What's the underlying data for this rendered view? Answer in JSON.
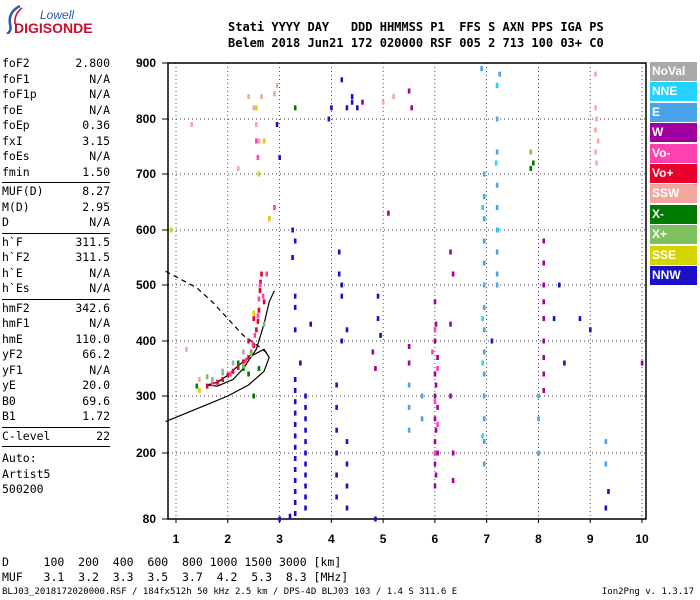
{
  "logo": {
    "top": "Lowell",
    "main": "DIGISONDE"
  },
  "header": {
    "line1": "Stati YYYY DAY   DDD HHMMSS P1  FFS S AXN PPS IGA PS",
    "line2": "Belem 2018 Jun21 172 020000 RSF 005 2 713 100 03+ C0"
  },
  "params": [
    {
      "k": "foF2",
      "v": "2.800"
    },
    {
      "k": "foF1",
      "v": "N/A"
    },
    {
      "k": "foF1p",
      "v": "N/A"
    },
    {
      "k": "foE",
      "v": "N/A"
    },
    {
      "k": "foEp",
      "v": "0.36"
    },
    {
      "k": "fxI",
      "v": "3.15"
    },
    {
      "k": "foEs",
      "v": "N/A"
    },
    {
      "k": "fmin",
      "v": "1.50"
    },
    {
      "k": "MUF(D)",
      "v": "8.27"
    },
    {
      "k": "M(D)",
      "v": "2.95"
    },
    {
      "k": "D",
      "v": "N/A"
    },
    {
      "k": "h`F",
      "v": "311.5"
    },
    {
      "k": "h`F2",
      "v": "311.5"
    },
    {
      "k": "h`E",
      "v": "N/A"
    },
    {
      "k": "h`Es",
      "v": "N/A"
    },
    {
      "k": "hmF2",
      "v": "342.6"
    },
    {
      "k": "hmF1",
      "v": "N/A"
    },
    {
      "k": "hmE",
      "v": "110.0"
    },
    {
      "k": "yF2",
      "v": "66.2"
    },
    {
      "k": "yF1",
      "v": "N/A"
    },
    {
      "k": "yE",
      "v": "20.0"
    },
    {
      "k": "B0",
      "v": "69.6"
    },
    {
      "k": "B1",
      "v": "1.72"
    },
    {
      "k": "C-level",
      "v": "22"
    }
  ],
  "auto": {
    "label": "Auto:",
    "artist": "Artist5",
    "version": "500200"
  },
  "footer": {
    "d_row": "D     100  200  400  600  800 1000 1500 3000 [km]",
    "muf_row": "MUF   3.1  3.2  3.3  3.5  3.7  4.2  5.3  8.3 [MHz]",
    "file_line": "BLJ03_2018172020000.RSF / 184fx512h 50 kHz 2.5 km / DPS-4D BLJ03 103 / 1.4 S 311.6 E",
    "version": "Ion2Png v. 1.3.17"
  },
  "legend": [
    {
      "label": "NoVal",
      "color": "#a9a9a9"
    },
    {
      "label": "NNE",
      "color": "#22d3ff"
    },
    {
      "label": "E",
      "color": "#4aa3e8"
    },
    {
      "label": "W",
      "color": "#a000a0"
    },
    {
      "label": "Vo-",
      "color": "#ff40b0"
    },
    {
      "label": "Vo+",
      "color": "#e8002a"
    },
    {
      "label": "SSW",
      "color": "#f2a8a0"
    },
    {
      "label": "X-",
      "color": "#007a00"
    },
    {
      "label": "X+",
      "color": "#7fc060"
    },
    {
      "label": "SSE",
      "color": "#d4d400"
    },
    {
      "label": "NNW",
      "color": "#1a10c8"
    }
  ],
  "chart_data": {
    "type": "scatter",
    "x_ticks": [
      "1",
      "2",
      "3",
      "4",
      "5",
      "6",
      "7",
      "8",
      "9",
      "10"
    ],
    "y_ticks": [
      "80",
      "200",
      "300",
      "400",
      "500",
      "600",
      "700",
      "800",
      "900"
    ],
    "xlim": [
      0.8,
      10.0
    ],
    "ylim": [
      80,
      900
    ],
    "series": [
      {
        "name": "Vo+",
        "color": "#e8002a",
        "points": [
          [
            1.6,
            318
          ],
          [
            1.8,
            325
          ],
          [
            2.0,
            338
          ],
          [
            2.2,
            352
          ],
          [
            2.4,
            370
          ],
          [
            2.5,
            392
          ],
          [
            2.55,
            420
          ],
          [
            2.6,
            455
          ],
          [
            2.62,
            490
          ],
          [
            2.65,
            520
          ],
          [
            2.7,
            470
          ],
          [
            2.5,
            440
          ],
          [
            2.4,
            400
          ],
          [
            1.9,
            330
          ],
          [
            2.1,
            345
          ],
          [
            2.3,
            362
          ],
          [
            2.58,
            435
          ],
          [
            2.63,
            505
          ]
        ]
      },
      {
        "name": "Vo-",
        "color": "#ff40b0",
        "points": [
          [
            1.7,
            322
          ],
          [
            2.05,
            340
          ],
          [
            2.35,
            365
          ],
          [
            2.45,
            380
          ],
          [
            2.52,
            410
          ],
          [
            2.58,
            445
          ],
          [
            2.6,
            475
          ],
          [
            2.62,
            500
          ],
          [
            2.48,
            395
          ],
          [
            2.68,
            480
          ],
          [
            2.75,
            520
          ],
          [
            2.55,
            760
          ],
          [
            2.58,
            730
          ],
          [
            2.8,
            620
          ],
          [
            2.9,
            640
          ],
          [
            6.0,
            420
          ],
          [
            6.05,
            350
          ],
          [
            6.0,
            290
          ],
          [
            6.05,
            250
          ],
          [
            6.0,
            200
          ],
          [
            5.95,
            380
          ]
        ]
      },
      {
        "name": "SSW",
        "color": "#f2a8a0",
        "points": [
          [
            2.5,
            820
          ],
          [
            2.55,
            790
          ],
          [
            2.6,
            760
          ],
          [
            2.65,
            840
          ],
          [
            2.95,
            860
          ],
          [
            2.9,
            845
          ],
          [
            9.1,
            820
          ],
          [
            9.12,
            800
          ],
          [
            9.1,
            780
          ],
          [
            9.15,
            760
          ],
          [
            9.1,
            740
          ],
          [
            9.12,
            720
          ],
          [
            9.1,
            880
          ],
          [
            1.3,
            790
          ],
          [
            1.2,
            385
          ],
          [
            2.4,
            840
          ],
          [
            2.2,
            710
          ],
          [
            5.0,
            830
          ],
          [
            5.2,
            840
          ],
          [
            1.45,
            330
          ]
        ]
      },
      {
        "name": "E",
        "color": "#4aa3e8",
        "points": [
          [
            6.95,
            700
          ],
          [
            6.95,
            660
          ],
          [
            6.95,
            620
          ],
          [
            6.95,
            580
          ],
          [
            6.95,
            540
          ],
          [
            6.95,
            500
          ],
          [
            6.95,
            460
          ],
          [
            6.95,
            420
          ],
          [
            6.95,
            380
          ],
          [
            6.95,
            340
          ],
          [
            6.95,
            300
          ],
          [
            6.95,
            260
          ],
          [
            6.95,
            220
          ],
          [
            6.95,
            180
          ],
          [
            7.2,
            860
          ],
          [
            7.2,
            800
          ],
          [
            7.2,
            740
          ],
          [
            7.2,
            680
          ],
          [
            7.2,
            640
          ],
          [
            7.2,
            600
          ],
          [
            7.2,
            560
          ],
          [
            7.2,
            520
          ],
          [
            7.2,
            500
          ],
          [
            5.5,
            320
          ],
          [
            5.5,
            280
          ],
          [
            5.5,
            240
          ],
          [
            5.75,
            300
          ],
          [
            5.75,
            260
          ],
          [
            8.0,
            300
          ],
          [
            8.0,
            260
          ],
          [
            8.0,
            200
          ],
          [
            9.3,
            220
          ],
          [
            9.3,
            180
          ],
          [
            6.9,
            890
          ],
          [
            7.25,
            880
          ]
        ]
      },
      {
        "name": "NNE",
        "color": "#22d3ff",
        "points": [
          [
            7.2,
            860
          ],
          [
            7.18,
            720
          ],
          [
            7.22,
            600
          ],
          [
            6.92,
            640
          ],
          [
            6.92,
            440
          ],
          [
            6.92,
            360
          ],
          [
            6.92,
            230
          ]
        ]
      },
      {
        "name": "W",
        "color": "#a000a0",
        "points": [
          [
            6.0,
            470
          ],
          [
            6.02,
            430
          ],
          [
            6.0,
            400
          ],
          [
            6.05,
            370
          ],
          [
            6.0,
            340
          ],
          [
            6.02,
            320
          ],
          [
            6.0,
            300
          ],
          [
            6.05,
            280
          ],
          [
            6.0,
            260
          ],
          [
            6.02,
            240
          ],
          [
            6.0,
            220
          ],
          [
            6.05,
            200
          ],
          [
            6.0,
            180
          ],
          [
            6.02,
            160
          ],
          [
            6.0,
            140
          ],
          [
            8.1,
            580
          ],
          [
            8.1,
            540
          ],
          [
            8.1,
            500
          ],
          [
            8.1,
            470
          ],
          [
            8.1,
            440
          ],
          [
            8.1,
            400
          ],
          [
            8.1,
            370
          ],
          [
            8.1,
            340
          ],
          [
            8.1,
            310
          ],
          [
            5.5,
            390
          ],
          [
            5.5,
            360
          ],
          [
            5.1,
            630
          ],
          [
            6.3,
            560
          ],
          [
            6.35,
            520
          ],
          [
            6.3,
            430
          ],
          [
            6.3,
            300
          ],
          [
            6.35,
            200
          ],
          [
            6.35,
            150
          ],
          [
            4.8,
            380
          ],
          [
            4.85,
            350
          ],
          [
            10.0,
            360
          ],
          [
            4.6,
            830
          ],
          [
            5.5,
            850
          ],
          [
            5.55,
            820
          ]
        ]
      },
      {
        "name": "NNW",
        "color": "#1a10c8",
        "points": [
          [
            3.3,
            310
          ],
          [
            3.3,
            290
          ],
          [
            3.3,
            270
          ],
          [
            3.3,
            250
          ],
          [
            3.3,
            230
          ],
          [
            3.3,
            210
          ],
          [
            3.3,
            190
          ],
          [
            3.3,
            170
          ],
          [
            3.3,
            150
          ],
          [
            3.3,
            130
          ],
          [
            3.3,
            110
          ],
          [
            3.3,
            90
          ],
          [
            3.5,
            300
          ],
          [
            3.5,
            280
          ],
          [
            3.5,
            260
          ],
          [
            3.5,
            240
          ],
          [
            3.5,
            220
          ],
          [
            3.5,
            200
          ],
          [
            3.5,
            180
          ],
          [
            3.5,
            160
          ],
          [
            3.5,
            140
          ],
          [
            3.5,
            120
          ],
          [
            3.5,
            100
          ],
          [
            4.1,
            320
          ],
          [
            4.1,
            280
          ],
          [
            4.1,
            240
          ],
          [
            4.1,
            200
          ],
          [
            4.1,
            160
          ],
          [
            4.1,
            120
          ],
          [
            4.15,
            560
          ],
          [
            4.15,
            520
          ],
          [
            4.2,
            500
          ],
          [
            4.2,
            480
          ],
          [
            4.3,
            220
          ],
          [
            4.3,
            180
          ],
          [
            4.3,
            140
          ],
          [
            4.3,
            100
          ],
          [
            4.3,
            820
          ],
          [
            4.4,
            830
          ],
          [
            4.5,
            820
          ],
          [
            4.4,
            840
          ],
          [
            4.3,
            420
          ],
          [
            4.2,
            400
          ],
          [
            3.6,
            430
          ],
          [
            3.3,
            480
          ],
          [
            3.3,
            460
          ],
          [
            3.3,
            420
          ],
          [
            3.25,
            600
          ],
          [
            3.3,
            580
          ],
          [
            3.25,
            550
          ],
          [
            3.0,
            730
          ],
          [
            2.95,
            790
          ],
          [
            4.9,
            480
          ],
          [
            4.9,
            440
          ],
          [
            4.95,
            410
          ],
          [
            3.4,
            360
          ],
          [
            3.3,
            330
          ],
          [
            3.0,
            80
          ],
          [
            3.2,
            85
          ],
          [
            4.85,
            80
          ],
          [
            7.1,
            400
          ],
          [
            8.3,
            440
          ],
          [
            8.4,
            500
          ],
          [
            8.5,
            360
          ],
          [
            9.3,
            100
          ],
          [
            9.35,
            130
          ],
          [
            9.0,
            420
          ],
          [
            8.8,
            440
          ],
          [
            4.0,
            820
          ],
          [
            3.95,
            800
          ],
          [
            4.2,
            870
          ]
        ]
      },
      {
        "name": "X-",
        "color": "#007a00",
        "points": [
          [
            1.4,
            318
          ],
          [
            2.6,
            350
          ],
          [
            2.4,
            340
          ],
          [
            2.2,
            360
          ],
          [
            7.85,
            710
          ],
          [
            7.9,
            720
          ],
          [
            3.3,
            820
          ],
          [
            2.5,
            300
          ],
          [
            2.3,
            350
          ]
        ]
      },
      {
        "name": "X+",
        "color": "#7fc060",
        "points": [
          [
            1.6,
            335
          ],
          [
            1.9,
            342
          ],
          [
            2.3,
            355
          ],
          [
            2.7,
            430
          ],
          [
            2.45,
            375
          ],
          [
            7.85,
            740
          ]
        ]
      },
      {
        "name": "SSE",
        "color": "#d4d400",
        "points": [
          [
            0.9,
            600
          ],
          [
            2.6,
            700
          ],
          [
            2.7,
            760
          ],
          [
            2.8,
            620
          ],
          [
            2.5,
            450
          ],
          [
            2.55,
            820
          ],
          [
            1.45,
            310
          ]
        ]
      },
      {
        "name": "NoVal",
        "color": "#a9a9a9",
        "points": [
          [
            2.3,
            380
          ],
          [
            2.1,
            360
          ],
          [
            1.9,
            345
          ],
          [
            1.7,
            330
          ]
        ]
      }
    ],
    "trace_solid": [
      [
        0.8,
        255
      ],
      [
        1.2,
        270
      ],
      [
        1.6,
        285
      ],
      [
        2.0,
        300
      ],
      [
        2.4,
        320
      ],
      [
        2.7,
        345
      ],
      [
        2.8,
        370
      ],
      [
        2.7,
        385
      ],
      [
        2.4,
        370
      ],
      [
        2.2,
        355
      ],
      [
        2.0,
        338
      ],
      [
        1.8,
        325
      ],
      [
        1.6,
        320
      ],
      [
        1.8,
        318
      ],
      [
        2.1,
        330
      ],
      [
        2.3,
        350
      ],
      [
        2.55,
        385
      ],
      [
        2.7,
        430
      ],
      [
        2.8,
        470
      ],
      [
        2.9,
        490
      ]
    ],
    "trace_dashed": [
      [
        0.8,
        525
      ],
      [
        1.1,
        510
      ],
      [
        1.4,
        495
      ],
      [
        1.7,
        470
      ],
      [
        2.0,
        440
      ],
      [
        2.3,
        410
      ],
      [
        2.6,
        390
      ],
      [
        2.8,
        375
      ]
    ]
  }
}
